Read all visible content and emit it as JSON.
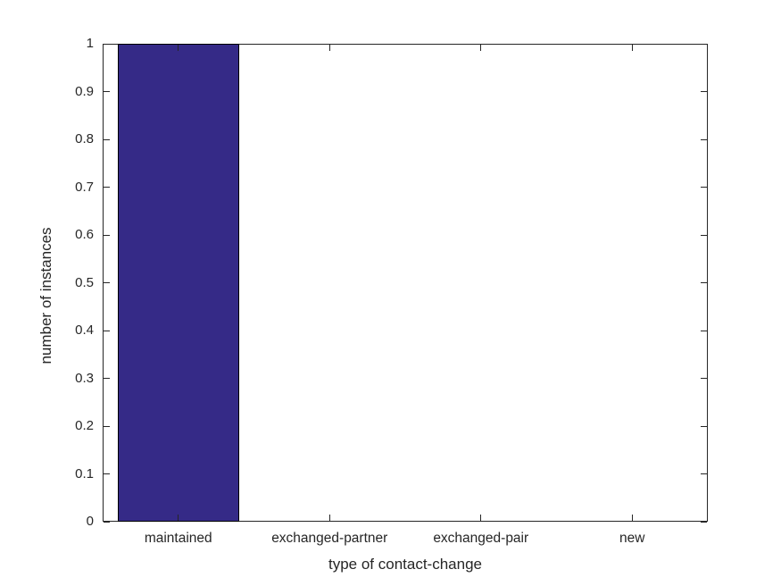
{
  "chart_data": {
    "type": "bar",
    "title": "",
    "categories": [
      "maintained",
      "exchanged-partner",
      "exchanged-pair",
      "new"
    ],
    "values": [
      1,
      0,
      0,
      0
    ],
    "xlabel": "type of contact-change",
    "ylabel": "number of instances",
    "ylim": [
      0,
      1
    ],
    "ytick_values": [
      0,
      0.1,
      0.2,
      0.3,
      0.4,
      0.5,
      0.6,
      0.7,
      0.8,
      0.9,
      1
    ],
    "ytick_labels": [
      "0",
      "0.1",
      "0.2",
      "0.3",
      "0.4",
      "0.5",
      "0.6",
      "0.7",
      "0.8",
      "0.9",
      "1"
    ],
    "bar_width_fraction": 0.8,
    "bar_color": "#352A87",
    "bar_edge_color": "#000000",
    "axis_color": "#262626",
    "background_color": "#ffffff",
    "grid": "off",
    "legend": "none"
  }
}
